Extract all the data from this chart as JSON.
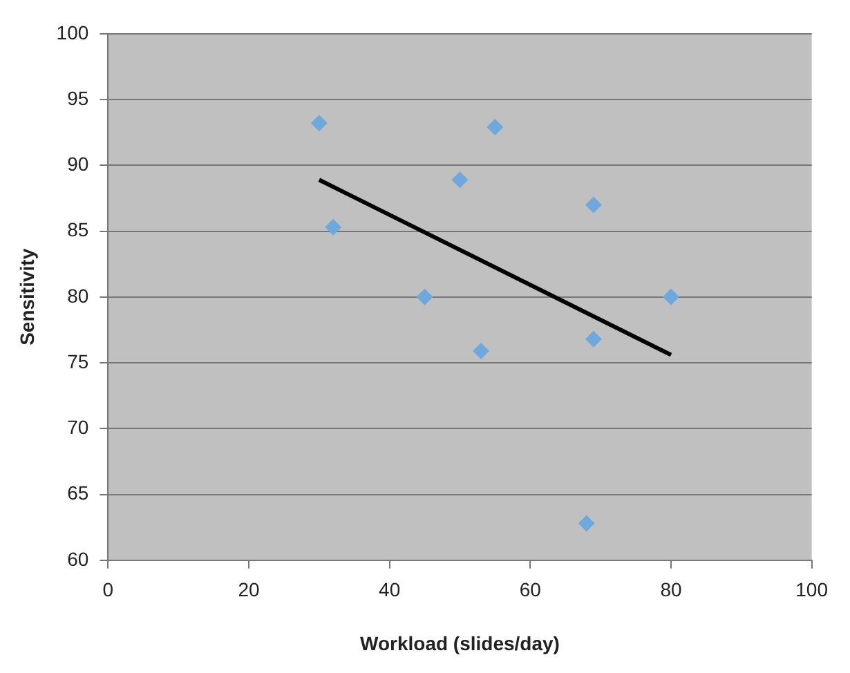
{
  "chart_data": {
    "type": "scatter",
    "xlabel": "Workload (slides/day)",
    "ylabel": "Sensitivity",
    "x": [
      30,
      32,
      45,
      50,
      55,
      53,
      69,
      69,
      80,
      68
    ],
    "values": [
      93.2,
      85.3,
      80,
      88.9,
      92.9,
      75.9,
      87,
      76.8,
      80,
      62.8
    ],
    "color": "#6fa8dc",
    "marker": "diamond",
    "series": [
      {
        "type": "line",
        "name": null,
        "color": "#000000",
        "x": [
          30,
          80
        ],
        "values": [
          88.9,
          75.6
        ],
        "marker": "none"
      }
    ],
    "xlim": [
      0,
      100
    ],
    "xticks": [
      0,
      20,
      40,
      60,
      80,
      100
    ],
    "ylim": [
      60,
      100
    ],
    "yticks": [
      60,
      65,
      70,
      75,
      80,
      85,
      90,
      95,
      100
    ],
    "grid": "y",
    "legend": false
  }
}
